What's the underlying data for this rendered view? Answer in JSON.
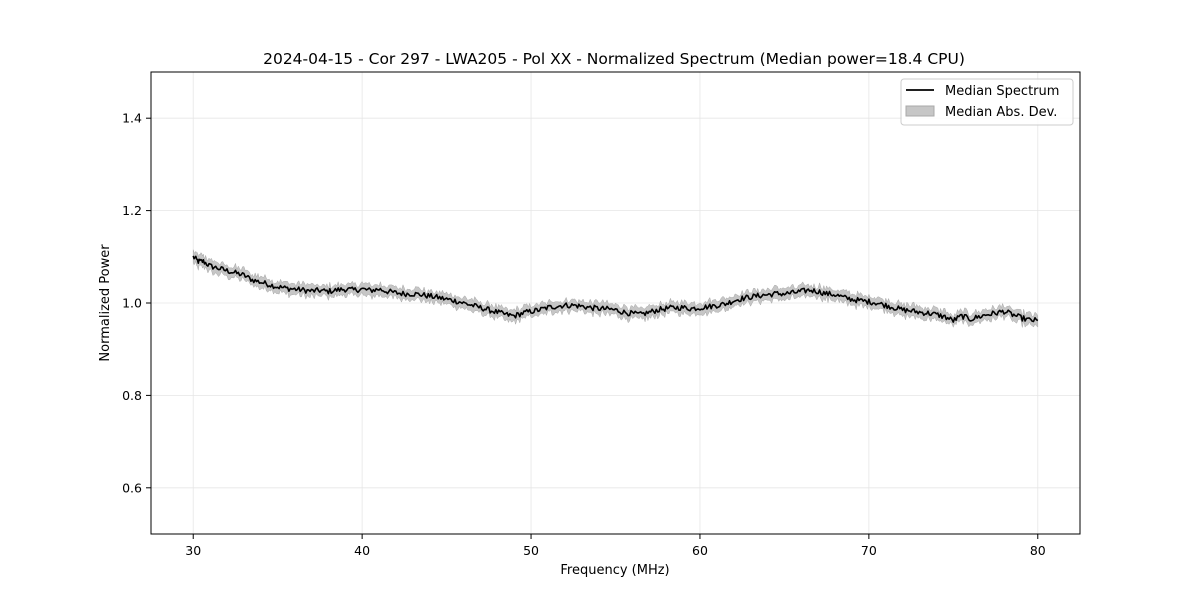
{
  "chart_data": {
    "type": "line",
    "title": "2024-04-15 - Cor 297 - LWA205 - Pol XX - Normalized Spectrum (Median power=18.4 CPU)",
    "xlabel": "Frequency (MHz)",
    "ylabel": "Normalized Power",
    "xlim": [
      27.5,
      82.5
    ],
    "ylim": [
      0.5,
      1.5
    ],
    "xticks": [
      30,
      40,
      50,
      60,
      70,
      80
    ],
    "yticks": [
      0.6,
      0.8,
      1.0,
      1.2,
      1.4
    ],
    "xtick_labels": [
      "30",
      "40",
      "50",
      "60",
      "70",
      "80"
    ],
    "ytick_labels": [
      "0.6",
      "0.8",
      "1.0",
      "1.2",
      "1.4"
    ],
    "grid": true,
    "legend_position": "top-right",
    "legend": [
      {
        "label": "Median Spectrum",
        "kind": "line",
        "color": "#000000"
      },
      {
        "label": "Median Abs. Dev.",
        "kind": "band",
        "color": "#c6c6c6"
      }
    ],
    "series": [
      {
        "name": "Median Spectrum",
        "color": "#000000",
        "band_color": "#c6c6c6",
        "band_halfwidth": 0.012,
        "x": [
          30.0,
          30.3,
          30.6,
          31.0,
          31.5,
          32.0,
          32.5,
          33.0,
          33.5,
          34.0,
          34.5,
          35.0,
          35.5,
          36.0,
          36.5,
          37.0,
          37.5,
          38.0,
          38.5,
          39.0,
          39.5,
          40.0,
          40.5,
          41.0,
          41.5,
          42.0,
          42.5,
          43.0,
          43.5,
          44.0,
          44.5,
          45.0,
          45.5,
          46.0,
          46.5,
          47.0,
          47.5,
          48.0,
          48.5,
          49.0,
          49.5,
          50.0,
          50.5,
          51.0,
          51.5,
          52.0,
          52.5,
          53.0,
          53.5,
          54.0,
          54.5,
          55.0,
          55.5,
          56.0,
          56.5,
          57.0,
          57.5,
          58.0,
          58.5,
          59.0,
          59.5,
          60.0,
          60.5,
          61.0,
          61.5,
          62.0,
          62.5,
          63.0,
          63.5,
          64.0,
          64.5,
          65.0,
          65.5,
          66.0,
          66.5,
          67.0,
          67.5,
          68.0,
          68.5,
          69.0,
          69.5,
          70.0,
          70.5,
          71.0,
          71.5,
          72.0,
          72.5,
          73.0,
          73.5,
          74.0,
          74.5,
          75.0,
          75.5,
          76.0,
          76.5,
          77.0,
          77.5,
          78.0,
          78.5,
          79.0,
          79.5,
          80.0
        ],
        "y": [
          1.1,
          1.09,
          1.09,
          1.08,
          1.075,
          1.07,
          1.065,
          1.06,
          1.05,
          1.045,
          1.04,
          1.035,
          1.032,
          1.03,
          1.028,
          1.026,
          1.027,
          1.025,
          1.028,
          1.03,
          1.028,
          1.03,
          1.027,
          1.03,
          1.025,
          1.022,
          1.02,
          1.02,
          1.018,
          1.015,
          1.012,
          1.008,
          1.005,
          1.0,
          0.995,
          0.99,
          0.985,
          0.98,
          0.975,
          0.972,
          0.978,
          0.982,
          0.985,
          0.99,
          0.993,
          0.995,
          0.995,
          0.993,
          0.99,
          0.988,
          0.987,
          0.985,
          0.98,
          0.977,
          0.975,
          0.98,
          0.985,
          0.988,
          0.99,
          0.99,
          0.988,
          0.99,
          0.992,
          0.995,
          0.998,
          1.005,
          1.01,
          1.013,
          1.016,
          1.018,
          1.02,
          1.02,
          1.022,
          1.025,
          1.028,
          1.025,
          1.02,
          1.018,
          1.012,
          1.008,
          1.005,
          1.003,
          1.0,
          0.995,
          0.99,
          0.985,
          0.983,
          0.98,
          0.978,
          0.975,
          0.97,
          0.962,
          0.972,
          0.965,
          0.97,
          0.975,
          0.978,
          0.982,
          0.975,
          0.968,
          0.963,
          0.962
        ]
      }
    ]
  }
}
